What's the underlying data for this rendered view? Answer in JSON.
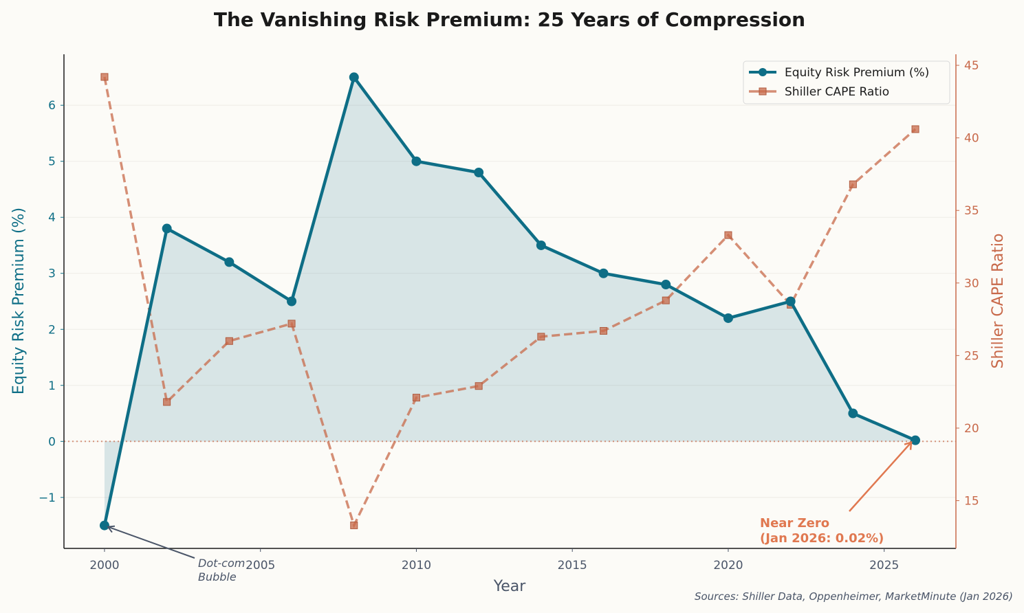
{
  "chart_data": {
    "type": "line",
    "title": "The Vanishing Risk Premium: 25 Years of Compression",
    "xlabel": "Year",
    "ylabel": "Equity Risk Premium (%)",
    "ylabel_right": "Shiller CAPE Ratio",
    "x": [
      2000,
      2002,
      2004,
      2006,
      2008,
      2010,
      2012,
      2014,
      2016,
      2018,
      2020,
      2022,
      2024,
      2026
    ],
    "xlim": [
      1998.7,
      2027.3
    ],
    "ylim": [
      -1.91,
      6.91
    ],
    "ylim_right": [
      11.71,
      45.76
    ],
    "xticks": [
      "2000",
      "2005",
      "2010",
      "2015",
      "2020",
      "2025"
    ],
    "yticks": [
      "−1",
      "0",
      "1",
      "2",
      "3",
      "4",
      "5",
      "6"
    ],
    "yticks_right": [
      "15",
      "20",
      "25",
      "30",
      "35",
      "40",
      "45"
    ],
    "grid": "horizontal",
    "legend_position": "top-right",
    "series": [
      {
        "name": "Equity Risk Premium (%)",
        "axis": "left",
        "color": "#0e6e86",
        "style": "solid",
        "marker": "circle",
        "fill_to_zero": true,
        "values": [
          -1.5,
          3.8,
          3.2,
          2.5,
          6.5,
          5.0,
          4.8,
          3.5,
          3.0,
          2.8,
          2.2,
          2.5,
          0.5,
          0.02
        ]
      },
      {
        "name": "Shiller CAPE Ratio",
        "axis": "right",
        "color": "#c8694a",
        "style": "dashed",
        "marker": "square",
        "values": [
          44.2,
          21.8,
          26.0,
          27.2,
          13.3,
          22.1,
          22.9,
          26.3,
          26.7,
          28.8,
          33.3,
          28.5,
          36.8,
          40.6
        ]
      }
    ],
    "reference_line": {
      "axis": "left",
      "value": 0,
      "color": "#c8694a",
      "style": "dotted"
    },
    "annotations": [
      {
        "text_lines": [
          "Dot-com",
          "Bubble"
        ],
        "x": 2000,
        "y": -1.5,
        "color": "#4a5568"
      },
      {
        "text_lines": [
          "Near Zero",
          "(Jan 2026: 0.02%)"
        ],
        "x": 2026,
        "y": 0.02,
        "color": "#e07850"
      }
    ],
    "source": "Sources: Shiller Data, Oppenheimer, MarketMinute (Jan 2026)"
  }
}
